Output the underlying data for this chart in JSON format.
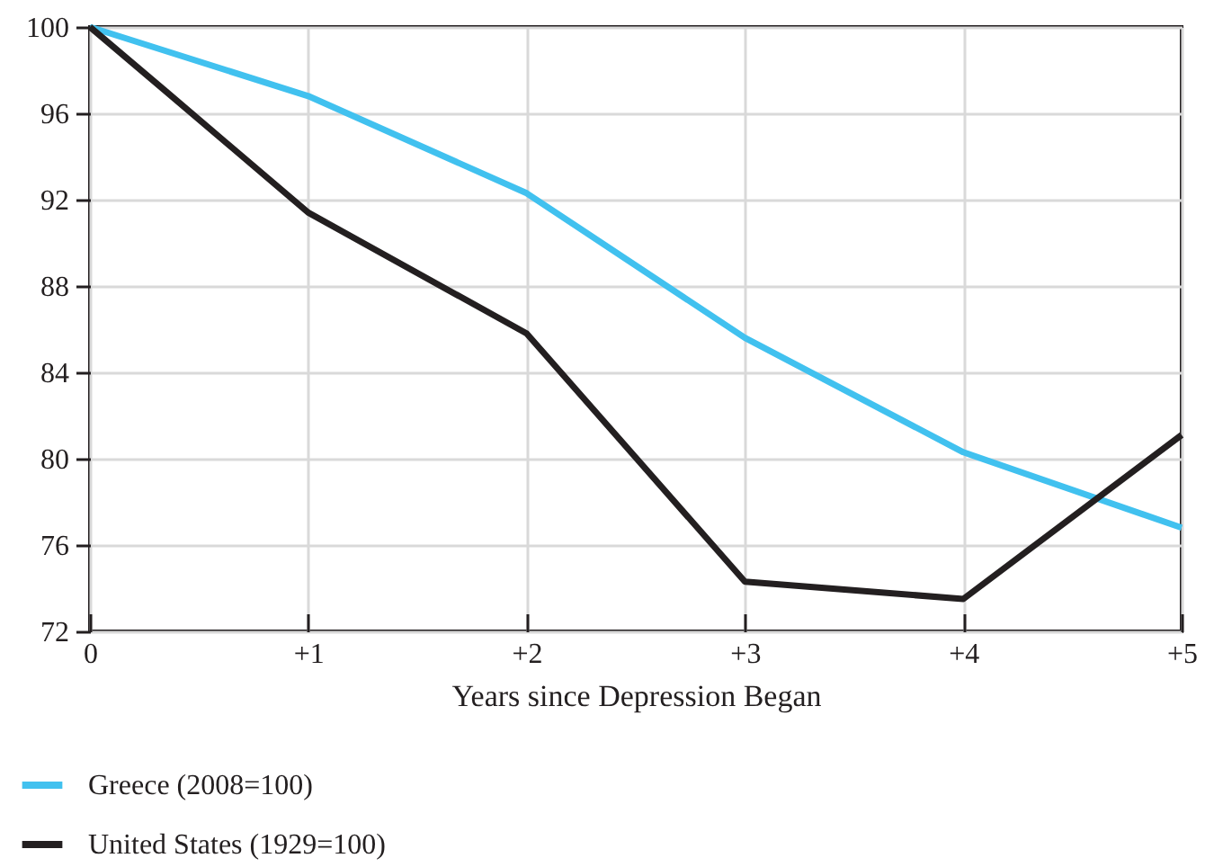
{
  "chart_data": {
    "type": "line",
    "xlabel": "Years since Depression Began",
    "xlim": [
      0,
      5
    ],
    "xticks": [
      0,
      {
        "value": 1,
        "label": "+1"
      },
      {
        "value": 2,
        "label": "+2"
      },
      {
        "value": 3,
        "label": "+3"
      },
      {
        "value": 4,
        "label": "+4"
      },
      {
        "value": 5,
        "label": "+5"
      }
    ],
    "ylim": [
      72,
      100
    ],
    "yticks": [
      72,
      76,
      80,
      84,
      88,
      92,
      96,
      100
    ],
    "grid": true,
    "legend": "bottom",
    "marker": "none",
    "line_style": "solid",
    "series": [
      {
        "name": "Greece (2008=100)",
        "color": "#41c1ef",
        "x": [
          0,
          1,
          2,
          3,
          4,
          5
        ],
        "values": [
          100,
          96.8,
          92.3,
          85.6,
          80.3,
          76.8
        ]
      },
      {
        "name": "United States (1929=100)",
        "color": "#231f20",
        "x": [
          0,
          0.35,
          1,
          2,
          3,
          4,
          5
        ],
        "values": [
          100,
          97.0,
          91.4,
          85.8,
          74.3,
          73.5,
          81.1
        ]
      }
    ]
  }
}
